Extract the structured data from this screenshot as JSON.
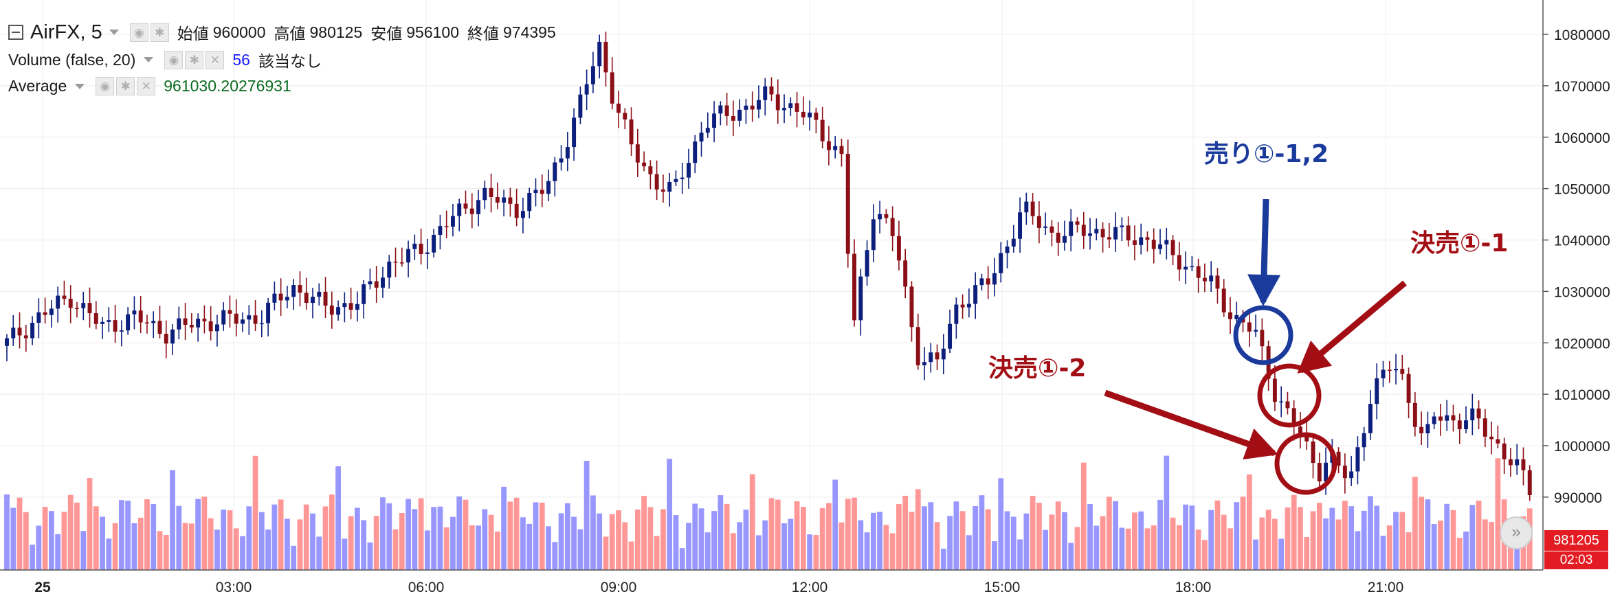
{
  "legend": {
    "symbol": "AirFX, 5",
    "ohlc": [
      {
        "label": "始値",
        "value": "960000"
      },
      {
        "label": "高値",
        "value": "980125"
      },
      {
        "label": "安値",
        "value": "956100"
      },
      {
        "label": "終値",
        "value": "974395"
      }
    ],
    "volume": {
      "name": "Volume (false, 20)",
      "count": "56",
      "note": "該当なし",
      "count_color": "#1a1aff"
    },
    "average": {
      "name": "Average",
      "value": "961030.20276931",
      "value_color": "#0b6b1e"
    }
  },
  "price_axis": {
    "labels": [
      "1080000",
      "1070000",
      "1060000",
      "1050000",
      "1040000",
      "1030000",
      "1020000",
      "1010000",
      "1000000",
      "990000"
    ],
    "current_price": "981205",
    "countdown": "02:03"
  },
  "time_axis": {
    "labels": [
      "25",
      "03:00",
      "06:00",
      "09:00",
      "12:00",
      "15:00",
      "18:00",
      "21:00"
    ]
  },
  "annotations": {
    "sell": "売り①-1,2",
    "settle1": "決売①-1",
    "settle2": "決売①-2"
  },
  "colors": {
    "up": "#0c1f7d",
    "down": "#8b0f16",
    "vol_up": "#8c8cff",
    "vol_down": "#ff8c8c",
    "sell_annot": "#1a3a9c",
    "settle_annot": "#a30e15"
  },
  "icons": {
    "scroll": "double-chevron-right-icon",
    "collapse": "minus-square-icon"
  },
  "chart_data": {
    "type": "candlestick",
    "title": "AirFX, 5",
    "ylim": [
      985000,
      1083000
    ],
    "x_tick_labels": [
      "25",
      "03:00",
      "06:00",
      "09:00",
      "12:00",
      "15:00",
      "18:00",
      "21:00"
    ],
    "candles_close": [
      [
        0,
        1020000
      ],
      [
        3,
        1025000
      ],
      [
        6,
        1029000
      ],
      [
        9,
        1023000
      ],
      [
        12,
        1025000
      ],
      [
        15,
        1022000
      ],
      [
        18,
        1024000
      ],
      [
        21,
        1024500
      ],
      [
        24,
        1025000
      ],
      [
        27,
        1031000
      ],
      [
        30,
        1027000
      ],
      [
        33,
        1027500
      ],
      [
        36,
        1035000
      ],
      [
        39,
        1038000
      ],
      [
        42,
        1044000
      ],
      [
        45,
        1049000
      ],
      [
        48,
        1046000
      ],
      [
        51,
        1050000
      ],
      [
        54,
        1065000
      ],
      [
        56,
        1078000
      ],
      [
        57,
        1070000
      ],
      [
        59,
        1058000
      ],
      [
        61,
        1052000
      ],
      [
        63,
        1049000
      ],
      [
        66,
        1063000
      ],
      [
        69,
        1065000
      ],
      [
        72,
        1068000
      ],
      [
        75,
        1065000
      ],
      [
        77,
        1061000
      ],
      [
        79,
        1056000
      ],
      [
        80,
        1022000
      ],
      [
        82,
        1047000
      ],
      [
        84,
        1040000
      ],
      [
        86,
        1018000
      ],
      [
        88,
        1016000
      ],
      [
        90,
        1028000
      ],
      [
        93,
        1032000
      ],
      [
        96,
        1046000
      ],
      [
        99,
        1041000
      ],
      [
        102,
        1042000
      ],
      [
        105,
        1041000
      ],
      [
        108,
        1040000
      ],
      [
        111,
        1036000
      ],
      [
        114,
        1031000
      ],
      [
        116,
        1025000
      ],
      [
        118,
        1022000
      ],
      [
        120,
        1010000
      ],
      [
        122,
        1003000
      ],
      [
        124,
        995000
      ],
      [
        125,
        998000
      ],
      [
        127,
        993000
      ],
      [
        129,
        1010000
      ],
      [
        131,
        1016000
      ],
      [
        132,
        1013000
      ],
      [
        134,
        1000000
      ],
      [
        135,
        1006000
      ],
      [
        137,
        1005000
      ],
      [
        139,
        1005000
      ],
      [
        141,
        1000000
      ],
      [
        143,
        995000
      ],
      [
        144,
        991500
      ]
    ],
    "volume": {
      "name": "Volume (false, 20)",
      "values": []
    }
  }
}
